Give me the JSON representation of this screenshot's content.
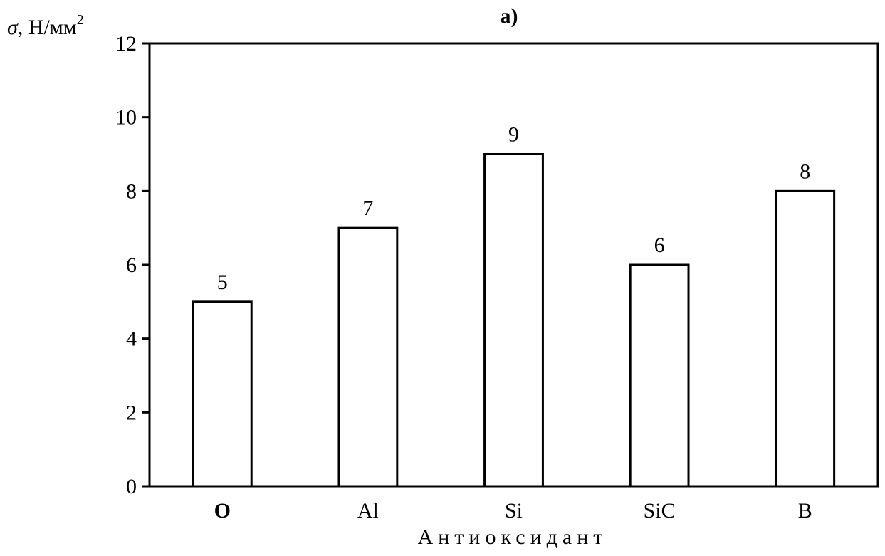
{
  "chart_data": {
    "type": "bar",
    "title": "а)",
    "xlabel": "Антиоксидант",
    "ylabel": {
      "symbol": "σ",
      "unit": ", Н/мм",
      "unit_exp": "2"
    },
    "categories": [
      "O",
      "Al",
      "Si",
      "SiC",
      "B"
    ],
    "bold_categories": [
      "O"
    ],
    "values": [
      5,
      7,
      9,
      6,
      8
    ],
    "data_labels": [
      "5",
      "7",
      "9",
      "6",
      "8"
    ],
    "ylim": [
      0,
      12
    ],
    "yticks": [
      0,
      2,
      4,
      6,
      8,
      10,
      12
    ],
    "grid": false,
    "legend": "none",
    "colors": {
      "bar_fill": "#ffffff",
      "bar_stroke": "#000000",
      "axis": "#000000"
    }
  }
}
